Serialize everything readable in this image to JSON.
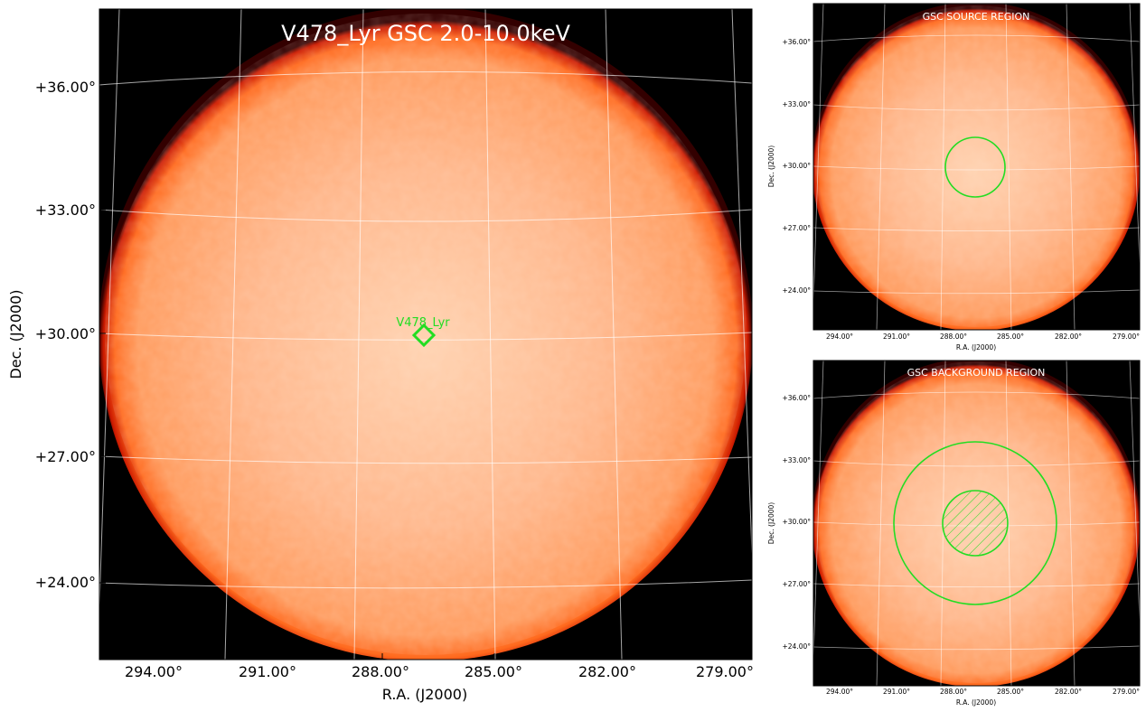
{
  "main_panel": {
    "title": "V478_Lyr GSC 2.0-10.0keV",
    "xlabel": "R.A. (J2000)",
    "ylabel": "Dec. (J2000)",
    "ra_ticks": [
      "294.00°",
      "291.00°",
      "288.00°",
      "285.00°",
      "282.00°",
      "279.00°"
    ],
    "dec_ticks": [
      "+36.00°",
      "+33.00°",
      "+30.00°",
      "+27.00°",
      "+24.00°"
    ],
    "source_label": "V478_Lyr"
  },
  "source_panel": {
    "title": "GSC SOURCE REGION",
    "xlabel": "R.A. (J2000)",
    "ylabel": "Dec. (J2000)",
    "ra_ticks": [
      "294.00°",
      "291.00°",
      "288.00°",
      "285.00°",
      "282.00°",
      "279.00°"
    ],
    "dec_ticks": [
      "+36.00°",
      "+33.00°",
      "+30.00°",
      "+27.00°",
      "+24.00°"
    ]
  },
  "background_panel": {
    "title": "GSC BACKGROUND REGION",
    "xlabel": "R.A. (J2000)",
    "ylabel": "Dec. (J2000)",
    "ra_ticks": [
      "294.00°",
      "291.00°",
      "288.00°",
      "285.00°",
      "282.00°",
      "279.00°"
    ],
    "dec_ticks": [
      "+36.00°",
      "+33.00°",
      "+30.00°",
      "+27.00°",
      "+24.00°"
    ]
  },
  "colors": {
    "region": "#22dd22",
    "disk": "#ff9955",
    "disk_center": "#ffd2b0",
    "sky_background": "#000000",
    "grid": "#ffffff"
  }
}
